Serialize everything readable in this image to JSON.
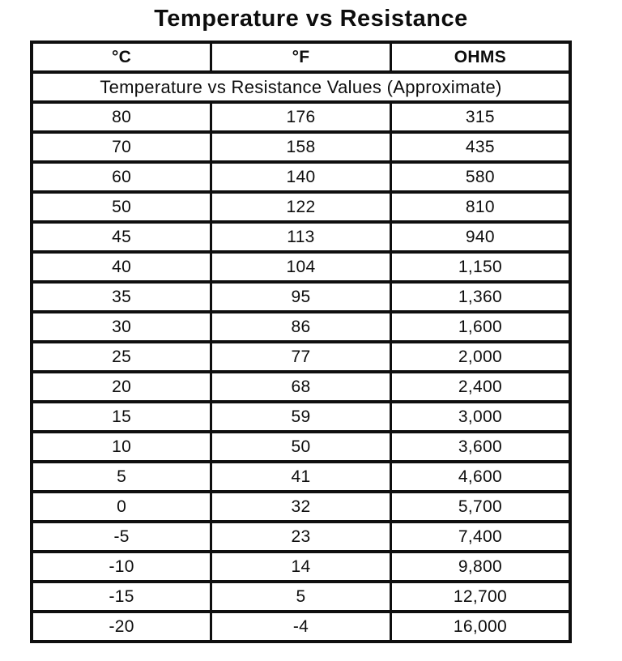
{
  "title": "Temperature vs Resistance",
  "table": {
    "headers": [
      "°C",
      "°F",
      "OHMS"
    ],
    "subtitle": "Temperature vs Resistance Values (Approximate)",
    "rows": [
      [
        "80",
        "176",
        "315"
      ],
      [
        "70",
        "158",
        "435"
      ],
      [
        "60",
        "140",
        "580"
      ],
      [
        "50",
        "122",
        "810"
      ],
      [
        "45",
        "113",
        "940"
      ],
      [
        "40",
        "104",
        "1,150"
      ],
      [
        "35",
        "95",
        "1,360"
      ],
      [
        "30",
        "86",
        "1,600"
      ],
      [
        "25",
        "77",
        "2,000"
      ],
      [
        "20",
        "68",
        "2,400"
      ],
      [
        "15",
        "59",
        "3,000"
      ],
      [
        "10",
        "50",
        "3,600"
      ],
      [
        "5",
        "41",
        "4,600"
      ],
      [
        "0",
        "32",
        "5,700"
      ],
      [
        "-5",
        "23",
        "7,400"
      ],
      [
        "-10",
        "14",
        "9,800"
      ],
      [
        "-15",
        "5",
        "12,700"
      ],
      [
        "-20",
        "-4",
        "16,000"
      ]
    ]
  },
  "colors": {
    "text": "#111111",
    "border": "#0f0f0f",
    "background": "#ffffff"
  }
}
